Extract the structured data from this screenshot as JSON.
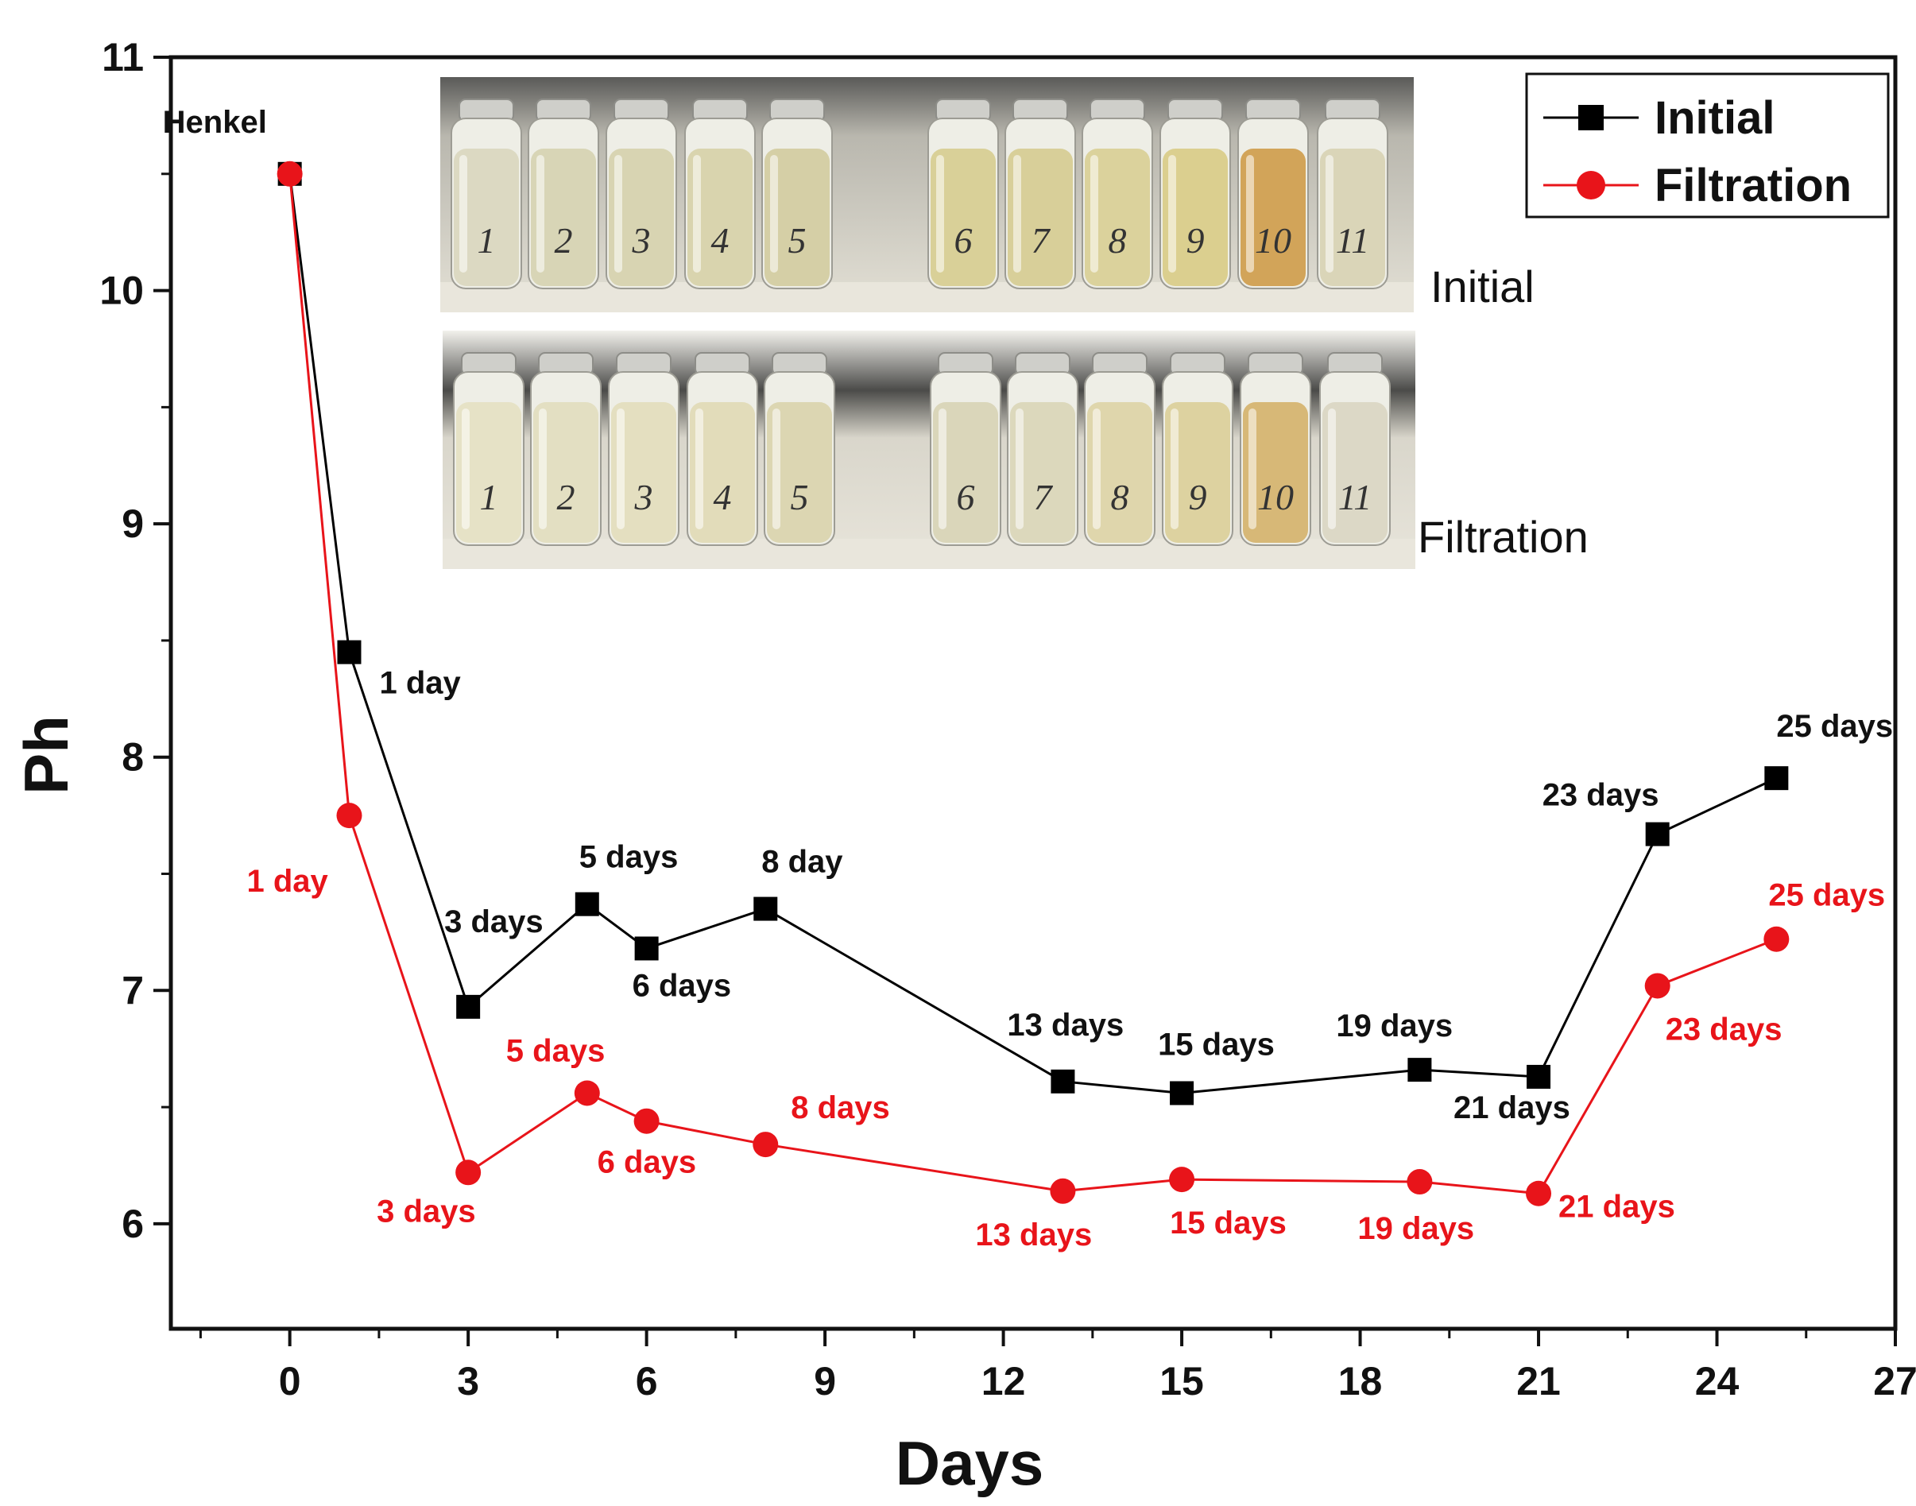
{
  "chart_data": {
    "type": "line",
    "title": "",
    "xlabel": "Days",
    "ylabel": "Ph",
    "xlim": [
      -2,
      27
    ],
    "ylim": [
      5.55,
      11
    ],
    "xticks": [
      0,
      3,
      6,
      9,
      12,
      15,
      18,
      21,
      24,
      27
    ],
    "xtick_labels": [
      "0",
      "3",
      "6",
      "9",
      "12",
      "15",
      "18",
      "21",
      "24",
      "27"
    ],
    "yticks": [
      6,
      7,
      8,
      9,
      10,
      11
    ],
    "ytick_labels": [
      "6",
      "7",
      "8",
      "9",
      "10",
      "11"
    ],
    "legend_position": "top-right",
    "series": [
      {
        "name": "Initial",
        "color": "#000000",
        "marker": "square",
        "x": [
          0,
          1,
          3,
          5,
          6,
          8,
          13,
          15,
          19,
          21,
          23,
          25
        ],
        "values": [
          10.5,
          8.45,
          6.93,
          7.37,
          7.18,
          7.35,
          6.61,
          6.56,
          6.66,
          6.63,
          7.67,
          7.91
        ]
      },
      {
        "name": "Filtration",
        "color": "#e8141a",
        "marker": "circle",
        "x": [
          0,
          1,
          3,
          5,
          6,
          8,
          13,
          15,
          19,
          21,
          23,
          25
        ],
        "values": [
          10.5,
          7.75,
          6.22,
          6.56,
          6.44,
          6.34,
          6.14,
          6.19,
          6.18,
          6.13,
          7.02,
          7.22
        ]
      }
    ],
    "annotations": [
      {
        "text": "Henkel",
        "color": "#111111",
        "anchor_x": 0,
        "anchor_y": 10.5
      },
      {
        "text": "1 day",
        "color": "#111111",
        "anchor_x": 1,
        "anchor_y": 8.45
      },
      {
        "text": "3 days",
        "color": "#111111",
        "anchor_x": 3,
        "anchor_y": 6.93
      },
      {
        "text": "5 days",
        "color": "#111111",
        "anchor_x": 5,
        "anchor_y": 7.37
      },
      {
        "text": "6 days",
        "color": "#111111",
        "anchor_x": 6,
        "anchor_y": 7.18
      },
      {
        "text": "8 day",
        "color": "#111111",
        "anchor_x": 8,
        "anchor_y": 7.35
      },
      {
        "text": "13 days",
        "color": "#111111",
        "anchor_x": 13,
        "anchor_y": 6.61
      },
      {
        "text": "15 days",
        "color": "#111111",
        "anchor_x": 15,
        "anchor_y": 6.56
      },
      {
        "text": "19 days",
        "color": "#111111",
        "anchor_x": 19,
        "anchor_y": 6.66
      },
      {
        "text": "21 days",
        "color": "#111111",
        "anchor_x": 21,
        "anchor_y": 6.63
      },
      {
        "text": "23 days",
        "color": "#111111",
        "anchor_x": 23,
        "anchor_y": 7.67
      },
      {
        "text": "25 days",
        "color": "#111111",
        "anchor_x": 25,
        "anchor_y": 7.91
      },
      {
        "text": "1 day",
        "color": "#e8141a",
        "anchor_x": 1,
        "anchor_y": 7.75
      },
      {
        "text": "3 days",
        "color": "#e8141a",
        "anchor_x": 3,
        "anchor_y": 6.22
      },
      {
        "text": "5 days",
        "color": "#e8141a",
        "anchor_x": 5,
        "anchor_y": 6.56
      },
      {
        "text": "6 days",
        "color": "#e8141a",
        "anchor_x": 6,
        "anchor_y": 6.44
      },
      {
        "text": "8 days",
        "color": "#e8141a",
        "anchor_x": 8,
        "anchor_y": 6.34
      },
      {
        "text": "13 days",
        "color": "#e8141a",
        "anchor_x": 13,
        "anchor_y": 6.14
      },
      {
        "text": "15 days",
        "color": "#e8141a",
        "anchor_x": 15,
        "anchor_y": 6.19
      },
      {
        "text": "19 days",
        "color": "#e8141a",
        "anchor_x": 19,
        "anchor_y": 6.18
      },
      {
        "text": "21 days",
        "color": "#e8141a",
        "anchor_x": 21,
        "anchor_y": 6.13
      },
      {
        "text": "23 days",
        "color": "#e8141a",
        "anchor_x": 23,
        "anchor_y": 7.02
      },
      {
        "text": "25 days",
        "color": "#e8141a",
        "anchor_x": 25,
        "anchor_y": 7.22
      }
    ]
  },
  "inset_photos": {
    "initial_caption": "Initial",
    "filtration_caption": "Filtration",
    "vial_labels_initial": [
      "1",
      "2",
      "3",
      "4",
      "5",
      "6",
      "7",
      "8",
      "9",
      "10",
      "11"
    ],
    "vial_labels_filtration": [
      "1",
      "2",
      "3",
      "4",
      "5",
      "6",
      "7",
      "8",
      "9",
      "10",
      "11"
    ]
  }
}
